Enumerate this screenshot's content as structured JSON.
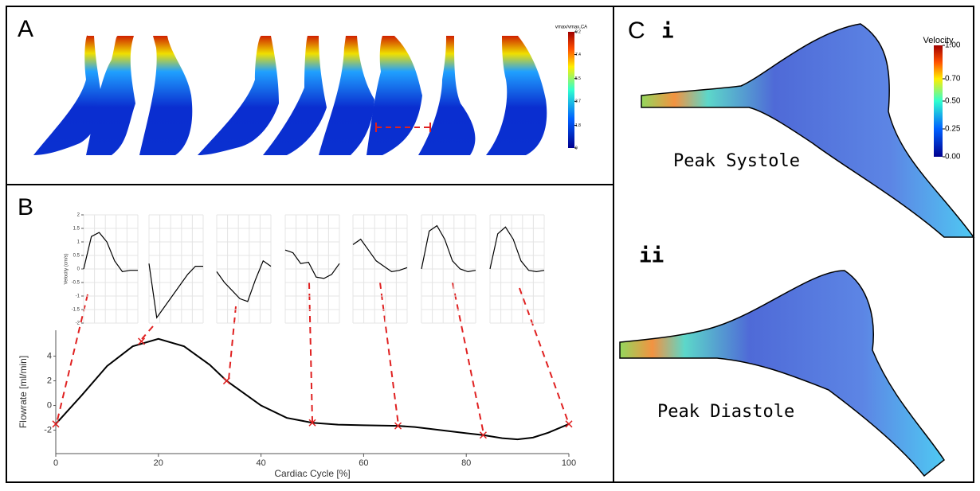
{
  "panels": {
    "a": "A",
    "b": "B",
    "c": "C",
    "ci": "i",
    "cii": "ii",
    "systole": "Peak Systole",
    "diastole": "Peak Diastole"
  },
  "colorbars": [
    {
      "title": "vmax/vmax,CA",
      "lim": [
        0,
        9.2
      ],
      "ticks": [
        9.2,
        7.4,
        5.5,
        3.7,
        1.8,
        0
      ]
    },
    {
      "title": "Velocity",
      "lim": [
        0,
        1
      ],
      "ticks": [
        {
          "value": 1,
          "label": "1.00"
        },
        {
          "value": 0.7,
          "label": "0.70"
        },
        {
          "value": 0.5,
          "label": "0.50"
        },
        {
          "value": 0.25,
          "label": "0.25"
        },
        {
          "value": 0,
          "label": "0.00"
        }
      ]
    }
  ],
  "chart_data": [
    {
      "type": "line",
      "xlabel": "Cardiac Cycle [%]",
      "ylabel": "Flowrate [ml/min]",
      "color": "#000000",
      "x": [
        0,
        5,
        10,
        15,
        20,
        25,
        30,
        33.3,
        40,
        45,
        50,
        55,
        60,
        66.7,
        70,
        75,
        80,
        83.3,
        87,
        90,
        93,
        96,
        100
      ],
      "values": [
        -1.5,
        0.8,
        3.2,
        4.8,
        5.4,
        4.8,
        3.3,
        2.0,
        0.0,
        -1.0,
        -1.4,
        -1.55,
        -1.6,
        -1.65,
        -1.75,
        -2.0,
        -2.25,
        -2.4,
        -2.65,
        -2.75,
        -2.6,
        -2.2,
        -1.5
      ],
      "points": {
        "x": [
          0,
          16.7,
          33.3,
          50,
          66.7,
          83.3,
          100
        ],
        "values": [
          -1.5,
          5.2,
          2.0,
          -1.4,
          -1.65,
          -2.4,
          -1.5
        ],
        "color": "#e02020"
      },
      "xlim": [
        0,
        100
      ],
      "xticks": [
        0,
        20,
        40,
        60,
        80,
        100
      ],
      "ylim": [
        -3.9,
        6.1
      ],
      "yticks": [
        -2,
        0,
        2,
        4
      ]
    },
    {
      "type": "line",
      "ylabel": "Velocity (cm/s)",
      "color": "#000000",
      "ylim": [
        -2,
        2
      ],
      "yticks": [
        2,
        1.5,
        1,
        0.5,
        0,
        -0.5,
        -1,
        -1.5,
        -2
      ],
      "values": [
        0,
        1.2,
        1.35,
        1.0,
        0.3,
        -0.1,
        -0.05,
        -0.05
      ]
    },
    {
      "type": "line",
      "color": "#000000",
      "ylim": [
        -2,
        2
      ],
      "values": [
        0.2,
        -1.8,
        -1.4,
        -1.0,
        -0.6,
        -0.2,
        0.1,
        0.1
      ]
    },
    {
      "type": "line",
      "color": "#000000",
      "ylim": [
        -2,
        2
      ],
      "values": [
        -0.1,
        -0.5,
        -0.8,
        -1.1,
        -1.2,
        -0.4,
        0.3,
        0.1
      ]
    },
    {
      "type": "line",
      "color": "#000000",
      "ylim": [
        -2,
        2
      ],
      "values": [
        0.7,
        0.6,
        0.2,
        0.25,
        -0.3,
        -0.35,
        -0.2,
        0.2
      ]
    },
    {
      "type": "line",
      "color": "#000000",
      "ylim": [
        -2,
        2
      ],
      "values": [
        0.9,
        1.1,
        0.7,
        0.3,
        0.1,
        -0.1,
        -0.05,
        0.05
      ]
    },
    {
      "type": "line",
      "color": "#000000",
      "ylim": [
        -2,
        2
      ],
      "values": [
        0,
        1.4,
        1.6,
        1.1,
        0.3,
        0.0,
        -0.1,
        -0.05
      ]
    },
    {
      "type": "line",
      "color": "#000000",
      "ylim": [
        -2,
        2
      ],
      "values": [
        0,
        1.3,
        1.55,
        1.1,
        0.3,
        -0.05,
        -0.1,
        -0.05
      ]
    }
  ]
}
